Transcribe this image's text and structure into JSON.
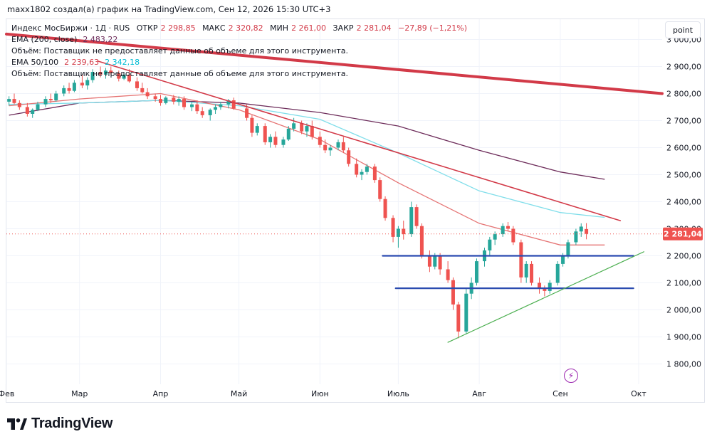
{
  "header": {
    "attribution": "maxx1802 создал(а) график на TradingView.com, Сен 12, 2026 15:30 UTC+3"
  },
  "legend": {
    "symbol": "Индекс МосБиржи · 1Д · RUS",
    "open_label": "ОТКР",
    "open_value": "2 298,85",
    "high_label": "МАКС",
    "high_value": "2 320,82",
    "low_label": "МИН",
    "low_value": "2 261,00",
    "close_label": "ЗАКР",
    "close_value": "2 281,04",
    "change": "−27,89 (−1,21%)",
    "ema200_label": "EMA (200, close)",
    "ema200_value": "2 483,22",
    "volume_note_1": "Объём: Поставщик не предоставляет данные об объеме для этого инструмента.",
    "ema50100_label": "EMA 50/100",
    "ema50_value": "2 239,63",
    "ema100_value": "2 342,18",
    "volume_note_2": "Объём: Поставщик не предоставляет данные об объеме для этого инструмента."
  },
  "scale_button": "point",
  "price_tag": "2 281,04",
  "brand": "TradingView",
  "colors": {
    "up": "#26a69a",
    "down": "#ef5350",
    "ema200": "#6d2c5a",
    "ema50": "#e57373",
    "ema100": "#80deea",
    "resistance": "#d23a48",
    "support": "#2a4bb0",
    "trend_up": "#4caf50"
  },
  "chart_data": {
    "type": "candlestick",
    "y_axis_ticks": [
      "3 000,00",
      "2 900,00",
      "2 800,00",
      "2 700,00",
      "2 600,00",
      "2 500,00",
      "2 400,00",
      "2 300,00",
      "2 200,00",
      "2 100,00",
      "2 000,00",
      "1 900,00",
      "1 800,00"
    ],
    "y_tick_values": [
      3000,
      2900,
      2800,
      2700,
      2600,
      2500,
      2400,
      2300,
      2200,
      2100,
      2000,
      1900,
      1800
    ],
    "ylim": [
      1725,
      3075
    ],
    "x_axis_labels": [
      "Фев",
      "Мар",
      "Апр",
      "Май",
      "Июн",
      "Июль",
      "Авг",
      "Сен",
      "Окт"
    ],
    "x_axis_label_dates": [
      "2026-02-01",
      "2026-03-01",
      "2026-04-01",
      "2026-05-01",
      "2026-06-01",
      "2026-07-01",
      "2026-08-01",
      "2026-09-01",
      "2026-10-01"
    ],
    "xlim": [
      "2026-02-01",
      "2026-10-10"
    ],
    "last_close": 2281.04,
    "series": [
      {
        "kind": "candles",
        "points": [
          [
            "2026-02-02",
            2770,
            2790,
            2755,
            2780
          ],
          [
            "2026-02-04",
            2780,
            2800,
            2760,
            2765
          ],
          [
            "2026-02-06",
            2765,
            2775,
            2740,
            2750
          ],
          [
            "2026-02-09",
            2750,
            2765,
            2715,
            2725
          ],
          [
            "2026-02-11",
            2725,
            2745,
            2710,
            2740
          ],
          [
            "2026-02-13",
            2740,
            2770,
            2735,
            2760
          ],
          [
            "2026-02-16",
            2760,
            2790,
            2750,
            2780
          ],
          [
            "2026-02-18",
            2780,
            2800,
            2765,
            2775
          ],
          [
            "2026-02-20",
            2775,
            2810,
            2770,
            2800
          ],
          [
            "2026-02-23",
            2800,
            2830,
            2790,
            2820
          ],
          [
            "2026-02-25",
            2820,
            2840,
            2800,
            2810
          ],
          [
            "2026-02-27",
            2810,
            2850,
            2805,
            2840
          ],
          [
            "2026-03-02",
            2840,
            2870,
            2820,
            2830
          ],
          [
            "2026-03-04",
            2830,
            2860,
            2815,
            2850
          ],
          [
            "2026-03-06",
            2850,
            2890,
            2840,
            2880
          ],
          [
            "2026-03-09",
            2880,
            2900,
            2860,
            2870
          ],
          [
            "2026-03-11",
            2870,
            2895,
            2855,
            2885
          ],
          [
            "2026-03-13",
            2885,
            2900,
            2870,
            2875
          ],
          [
            "2026-03-16",
            2875,
            2885,
            2845,
            2855
          ],
          [
            "2026-03-18",
            2855,
            2880,
            2850,
            2870
          ],
          [
            "2026-03-20",
            2870,
            2890,
            2840,
            2845
          ],
          [
            "2026-03-23",
            2845,
            2860,
            2810,
            2820
          ],
          [
            "2026-03-25",
            2820,
            2840,
            2800,
            2805
          ],
          [
            "2026-03-27",
            2805,
            2820,
            2780,
            2790
          ],
          [
            "2026-03-30",
            2790,
            2800,
            2770,
            2780
          ],
          [
            "2026-04-01",
            2780,
            2795,
            2755,
            2765
          ],
          [
            "2026-04-03",
            2765,
            2790,
            2760,
            2785
          ],
          [
            "2026-04-06",
            2785,
            2795,
            2760,
            2770
          ],
          [
            "2026-04-08",
            2770,
            2790,
            2755,
            2780
          ],
          [
            "2026-04-10",
            2780,
            2790,
            2740,
            2750
          ],
          [
            "2026-04-13",
            2750,
            2770,
            2735,
            2760
          ],
          [
            "2026-04-15",
            2760,
            2775,
            2725,
            2735
          ],
          [
            "2026-04-17",
            2735,
            2750,
            2710,
            2720
          ],
          [
            "2026-04-20",
            2720,
            2745,
            2700,
            2740
          ],
          [
            "2026-04-22",
            2740,
            2760,
            2725,
            2750
          ],
          [
            "2026-04-24",
            2750,
            2770,
            2740,
            2760
          ],
          [
            "2026-04-27",
            2760,
            2780,
            2745,
            2775
          ],
          [
            "2026-04-29",
            2775,
            2785,
            2740,
            2745
          ],
          [
            "2026-05-04",
            2745,
            2760,
            2700,
            2710
          ],
          [
            "2026-05-06",
            2710,
            2720,
            2640,
            2655
          ],
          [
            "2026-05-08",
            2655,
            2690,
            2645,
            2680
          ],
          [
            "2026-05-11",
            2680,
            2690,
            2610,
            2620
          ],
          [
            "2026-05-13",
            2620,
            2650,
            2600,
            2640
          ],
          [
            "2026-05-15",
            2640,
            2660,
            2600,
            2610
          ],
          [
            "2026-05-18",
            2610,
            2640,
            2600,
            2630
          ],
          [
            "2026-05-20",
            2630,
            2680,
            2625,
            2670
          ],
          [
            "2026-05-22",
            2670,
            2710,
            2660,
            2690
          ],
          [
            "2026-05-25",
            2690,
            2700,
            2650,
            2660
          ],
          [
            "2026-05-27",
            2660,
            2690,
            2640,
            2680
          ],
          [
            "2026-05-29",
            2680,
            2700,
            2630,
            2640
          ],
          [
            "2026-06-01",
            2640,
            2660,
            2600,
            2610
          ],
          [
            "2026-06-03",
            2610,
            2630,
            2580,
            2590
          ],
          [
            "2026-06-05",
            2590,
            2610,
            2570,
            2600
          ],
          [
            "2026-06-08",
            2600,
            2630,
            2590,
            2620
          ],
          [
            "2026-06-10",
            2620,
            2640,
            2580,
            2590
          ],
          [
            "2026-06-12",
            2590,
            2600,
            2530,
            2540
          ],
          [
            "2026-06-15",
            2540,
            2560,
            2490,
            2500
          ],
          [
            "2026-06-17",
            2500,
            2520,
            2480,
            2510
          ],
          [
            "2026-06-19",
            2510,
            2540,
            2500,
            2530
          ],
          [
            "2026-06-22",
            2530,
            2540,
            2470,
            2480
          ],
          [
            "2026-06-24",
            2480,
            2490,
            2400,
            2410
          ],
          [
            "2026-06-26",
            2410,
            2420,
            2330,
            2340
          ],
          [
            "2026-06-29",
            2340,
            2350,
            2250,
            2270
          ],
          [
            "2026-07-01",
            2270,
            2310,
            2230,
            2300
          ],
          [
            "2026-07-03",
            2300,
            2330,
            2260,
            2280
          ],
          [
            "2026-07-06",
            2280,
            2400,
            2270,
            2380
          ],
          [
            "2026-07-08",
            2380,
            2390,
            2300,
            2310
          ],
          [
            "2026-07-10",
            2310,
            2320,
            2190,
            2200
          ],
          [
            "2026-07-13",
            2200,
            2220,
            2140,
            2160
          ],
          [
            "2026-07-15",
            2160,
            2210,
            2150,
            2200
          ],
          [
            "2026-07-17",
            2200,
            2210,
            2130,
            2150
          ],
          [
            "2026-07-20",
            2150,
            2180,
            2100,
            2110
          ],
          [
            "2026-07-22",
            2110,
            2120,
            2000,
            2020
          ],
          [
            "2026-07-24",
            2020,
            2030,
            1895,
            1920
          ],
          [
            "2026-07-27",
            1920,
            2080,
            1910,
            2060
          ],
          [
            "2026-07-29",
            2060,
            2120,
            2040,
            2100
          ],
          [
            "2026-07-31",
            2100,
            2190,
            2090,
            2180
          ],
          [
            "2026-08-03",
            2180,
            2230,
            2160,
            2220
          ],
          [
            "2026-08-05",
            2220,
            2270,
            2200,
            2260
          ],
          [
            "2026-08-07",
            2260,
            2290,
            2240,
            2280
          ],
          [
            "2026-08-10",
            2280,
            2320,
            2270,
            2310
          ],
          [
            "2026-08-12",
            2310,
            2325,
            2290,
            2300
          ],
          [
            "2026-08-14",
            2300,
            2310,
            2240,
            2250
          ],
          [
            "2026-08-17",
            2250,
            2260,
            2100,
            2120
          ],
          [
            "2026-08-19",
            2120,
            2180,
            2100,
            2170
          ],
          [
            "2026-08-21",
            2170,
            2180,
            2090,
            2100
          ],
          [
            "2026-08-24",
            2100,
            2120,
            2060,
            2080
          ],
          [
            "2026-08-26",
            2080,
            2090,
            2050,
            2070
          ],
          [
            "2026-08-28",
            2070,
            2110,
            2060,
            2100
          ],
          [
            "2026-08-31",
            2100,
            2180,
            2090,
            2170
          ],
          [
            "2026-09-02",
            2170,
            2210,
            2160,
            2200
          ],
          [
            "2026-09-04",
            2200,
            2260,
            2190,
            2250
          ],
          [
            "2026-09-07",
            2250,
            2300,
            2240,
            2290
          ],
          [
            "2026-09-09",
            2290,
            2320,
            2270,
            2308
          ],
          [
            "2026-09-11",
            2298.85,
            2320.82,
            2261.0,
            2281.04
          ]
        ]
      },
      {
        "kind": "ema200",
        "points": [
          [
            "2026-02-02",
            2720
          ],
          [
            "2026-03-01",
            2765
          ],
          [
            "2026-04-01",
            2775
          ],
          [
            "2026-05-01",
            2765
          ],
          [
            "2026-06-01",
            2730
          ],
          [
            "2026-07-01",
            2680
          ],
          [
            "2026-08-01",
            2590
          ],
          [
            "2026-09-01",
            2510
          ],
          [
            "2026-09-18",
            2483
          ]
        ]
      },
      {
        "kind": "ema100",
        "points": [
          [
            "2026-02-02",
            2760
          ],
          [
            "2026-03-01",
            2765
          ],
          [
            "2026-04-01",
            2775
          ],
          [
            "2026-05-01",
            2755
          ],
          [
            "2026-06-01",
            2705
          ],
          [
            "2026-07-01",
            2580
          ],
          [
            "2026-08-01",
            2440
          ],
          [
            "2026-09-01",
            2360
          ],
          [
            "2026-09-18",
            2342
          ]
        ]
      },
      {
        "kind": "ema50",
        "points": [
          [
            "2026-02-02",
            2755
          ],
          [
            "2026-03-01",
            2780
          ],
          [
            "2026-04-01",
            2800
          ],
          [
            "2026-05-01",
            2740
          ],
          [
            "2026-06-01",
            2630
          ],
          [
            "2026-07-01",
            2470
          ],
          [
            "2026-08-01",
            2320
          ],
          [
            "2026-09-01",
            2240
          ],
          [
            "2026-09-18",
            2240
          ]
        ]
      }
    ],
    "drawings": [
      {
        "kind": "resistance-long",
        "points": [
          [
            "2026-02-01",
            3020
          ],
          [
            "2026-10-10",
            2800
          ]
        ]
      },
      {
        "kind": "resistance-short",
        "points": [
          [
            "2026-03-08",
            2920
          ],
          [
            "2026-09-24",
            2330
          ]
        ]
      },
      {
        "kind": "support-1",
        "points": [
          [
            "2026-06-25",
            2200
          ],
          [
            "2026-09-29",
            2200
          ]
        ]
      },
      {
        "kind": "support-2",
        "points": [
          [
            "2026-06-30",
            2080
          ],
          [
            "2026-09-29",
            2080
          ]
        ]
      },
      {
        "kind": "trend-up",
        "points": [
          [
            "2026-07-20",
            1880
          ],
          [
            "2026-10-03",
            2215
          ]
        ]
      }
    ]
  }
}
